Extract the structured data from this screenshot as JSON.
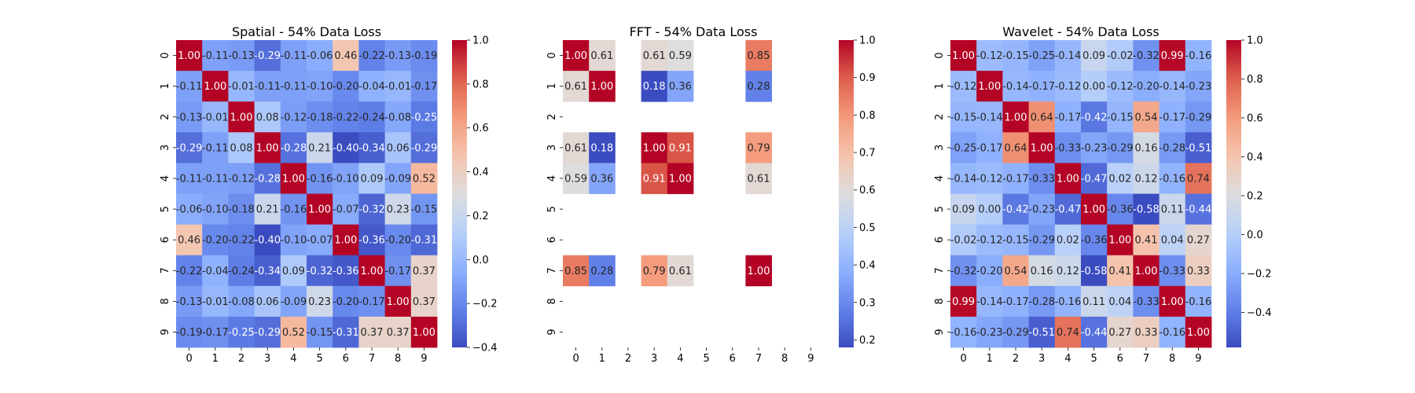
{
  "chart_data": [
    {
      "type": "heatmap",
      "title": "Spatial - 54% Data Loss",
      "x_ticks": [
        "0",
        "1",
        "2",
        "3",
        "4",
        "5",
        "6",
        "7",
        "8",
        "9"
      ],
      "y_ticks": [
        "0",
        "1",
        "2",
        "3",
        "4",
        "5",
        "6",
        "7",
        "8",
        "9"
      ],
      "vmin": -0.4,
      "vmax": 1.0,
      "colorbar_ticks": [
        -0.4,
        -0.2,
        0.0,
        0.2,
        0.4,
        0.6,
        0.8,
        1.0
      ],
      "colorbar_labels": [
        "−0.4",
        "−0.2",
        "0.0",
        "0.2",
        "0.4",
        "0.6",
        "0.8",
        "1.0"
      ],
      "colormap": "coolwarm",
      "values": [
        [
          1.0,
          -0.11,
          -0.13,
          -0.29,
          -0.11,
          -0.06,
          0.46,
          -0.22,
          -0.13,
          -0.19
        ],
        [
          -0.11,
          1.0,
          -0.01,
          -0.11,
          -0.11,
          -0.1,
          -0.2,
          -0.04,
          -0.01,
          -0.17
        ],
        [
          -0.13,
          -0.01,
          1.0,
          0.08,
          -0.12,
          -0.18,
          -0.22,
          -0.24,
          -0.08,
          -0.25
        ],
        [
          -0.29,
          -0.11,
          0.08,
          1.0,
          -0.28,
          0.21,
          -0.4,
          -0.34,
          0.06,
          -0.29
        ],
        [
          -0.11,
          -0.11,
          -0.12,
          -0.28,
          1.0,
          -0.16,
          -0.1,
          0.09,
          -0.09,
          0.52
        ],
        [
          -0.06,
          -0.1,
          -0.18,
          0.21,
          -0.16,
          1.0,
          -0.07,
          -0.32,
          0.23,
          -0.15
        ],
        [
          0.46,
          -0.2,
          -0.22,
          -0.4,
          -0.1,
          -0.07,
          1.0,
          -0.36,
          -0.2,
          -0.31
        ],
        [
          -0.22,
          -0.04,
          -0.24,
          -0.34,
          0.09,
          -0.32,
          -0.36,
          1.0,
          -0.17,
          0.37
        ],
        [
          -0.13,
          -0.01,
          -0.08,
          0.06,
          -0.09,
          0.23,
          -0.2,
          -0.17,
          1.0,
          0.37
        ],
        [
          -0.19,
          -0.17,
          -0.25,
          -0.29,
          0.52,
          -0.15,
          -0.31,
          0.37,
          0.37,
          1.0
        ]
      ]
    },
    {
      "type": "heatmap",
      "title": "FFT - 54% Data Loss",
      "x_ticks": [
        "0",
        "1",
        "2",
        "3",
        "4",
        "5",
        "6",
        "7",
        "8",
        "9"
      ],
      "y_ticks": [
        "0",
        "1",
        "2",
        "3",
        "4",
        "5",
        "6",
        "7",
        "8",
        "9"
      ],
      "vmin": 0.18,
      "vmax": 1.0,
      "colorbar_ticks": [
        0.2,
        0.3,
        0.4,
        0.5,
        0.6,
        0.7,
        0.8,
        0.9,
        1.0
      ],
      "colorbar_labels": [
        "0.2",
        "0.3",
        "0.4",
        "0.5",
        "0.6",
        "0.7",
        "0.8",
        "0.9",
        "1.0"
      ],
      "colormap": "coolwarm",
      "values": [
        [
          1.0,
          0.61,
          null,
          0.61,
          0.59,
          null,
          null,
          0.85,
          null,
          null
        ],
        [
          0.61,
          1.0,
          null,
          0.18,
          0.36,
          null,
          null,
          0.28,
          null,
          null
        ],
        [
          null,
          null,
          null,
          null,
          null,
          null,
          null,
          null,
          null,
          null
        ],
        [
          0.61,
          0.18,
          null,
          1.0,
          0.91,
          null,
          null,
          0.79,
          null,
          null
        ],
        [
          0.59,
          0.36,
          null,
          0.91,
          1.0,
          null,
          null,
          0.61,
          null,
          null
        ],
        [
          null,
          null,
          null,
          null,
          null,
          null,
          null,
          null,
          null,
          null
        ],
        [
          null,
          null,
          null,
          null,
          null,
          null,
          null,
          null,
          null,
          null
        ],
        [
          0.85,
          0.28,
          null,
          0.79,
          0.61,
          null,
          null,
          1.0,
          null,
          null
        ],
        [
          null,
          null,
          null,
          null,
          null,
          null,
          null,
          null,
          null,
          null
        ],
        [
          null,
          null,
          null,
          null,
          null,
          null,
          null,
          null,
          null,
          null
        ]
      ]
    },
    {
      "type": "heatmap",
      "title": "Wavelet - 54% Data Loss",
      "x_ticks": [
        "0",
        "1",
        "2",
        "3",
        "4",
        "5",
        "6",
        "7",
        "8",
        "9"
      ],
      "y_ticks": [
        "0",
        "1",
        "2",
        "3",
        "4",
        "5",
        "6",
        "7",
        "8",
        "9"
      ],
      "vmin": -0.58,
      "vmax": 1.0,
      "colorbar_ticks": [
        -0.4,
        -0.2,
        0.0,
        0.2,
        0.4,
        0.6,
        0.8,
        1.0
      ],
      "colorbar_labels": [
        "−0.4",
        "−0.2",
        "0.0",
        "0.2",
        "0.4",
        "0.6",
        "0.8",
        "1.0"
      ],
      "colormap": "coolwarm",
      "values": [
        [
          1.0,
          -0.12,
          -0.15,
          -0.25,
          -0.14,
          0.09,
          -0.02,
          -0.32,
          0.99,
          -0.16
        ],
        [
          -0.12,
          1.0,
          -0.14,
          -0.17,
          -0.12,
          -0.0,
          -0.12,
          -0.2,
          -0.14,
          -0.23
        ],
        [
          -0.15,
          -0.14,
          1.0,
          0.64,
          -0.17,
          -0.42,
          -0.15,
          0.54,
          -0.17,
          -0.29
        ],
        [
          -0.25,
          -0.17,
          0.64,
          1.0,
          -0.33,
          -0.23,
          -0.29,
          0.16,
          -0.28,
          -0.51
        ],
        [
          -0.14,
          -0.12,
          -0.17,
          -0.33,
          1.0,
          -0.47,
          0.02,
          0.12,
          -0.16,
          0.74
        ],
        [
          0.09,
          -0.0,
          -0.42,
          -0.23,
          -0.47,
          1.0,
          -0.36,
          -0.58,
          0.11,
          -0.44
        ],
        [
          -0.02,
          -0.12,
          -0.15,
          -0.29,
          0.02,
          -0.36,
          1.0,
          0.41,
          0.04,
          0.27
        ],
        [
          -0.32,
          -0.2,
          0.54,
          0.16,
          0.12,
          -0.58,
          0.41,
          1.0,
          -0.33,
          0.33
        ],
        [
          0.99,
          -0.14,
          -0.17,
          -0.28,
          -0.16,
          0.11,
          0.04,
          -0.33,
          1.0,
          -0.16
        ],
        [
          -0.16,
          -0.23,
          -0.29,
          -0.51,
          0.74,
          -0.44,
          0.27,
          0.33,
          -0.16,
          1.0
        ]
      ]
    }
  ]
}
